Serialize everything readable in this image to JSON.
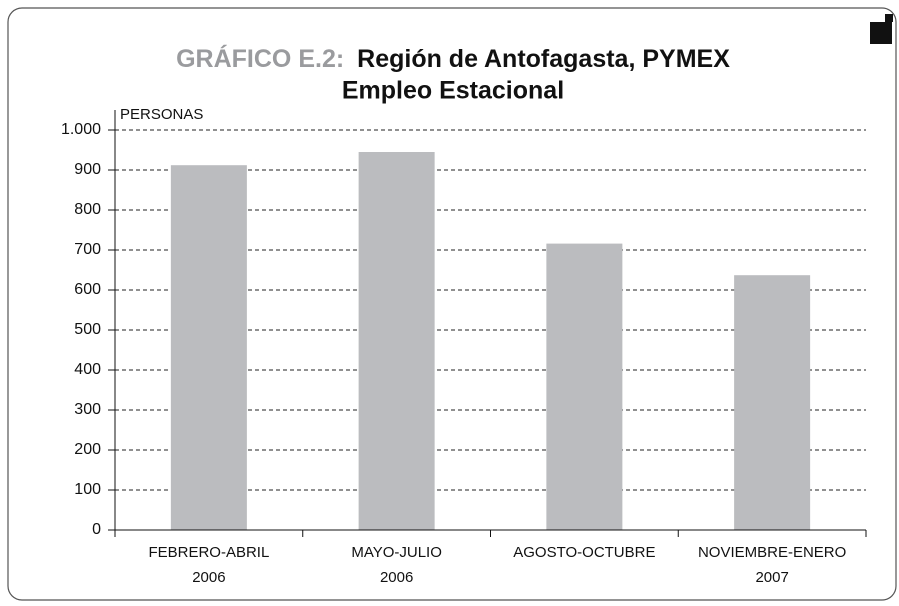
{
  "chart_data": {
    "type": "bar",
    "title_label": "GRÁFICO E.2:",
    "title": [
      "Región de Antofagasta, PYMEX",
      "Empleo Estacional"
    ],
    "y_label": "PERSONAS",
    "categories": [
      [
        "FEBRERO-ABRIL",
        "2006"
      ],
      [
        "MAYO-JULIO",
        "2006"
      ],
      [
        "AGOSTO-OCTUBRE"
      ],
      [
        "NOVIEMBRE-ENERO",
        "2007"
      ]
    ],
    "values": [
      912,
      945,
      716,
      637
    ],
    "color": "#bbbcbf",
    "ylim": [
      0,
      1000
    ],
    "yticks": [
      0,
      100,
      200,
      300,
      400,
      500,
      600,
      700,
      800,
      900,
      {
        "value": 1000,
        "label": "1.000"
      }
    ],
    "grid": true
  }
}
